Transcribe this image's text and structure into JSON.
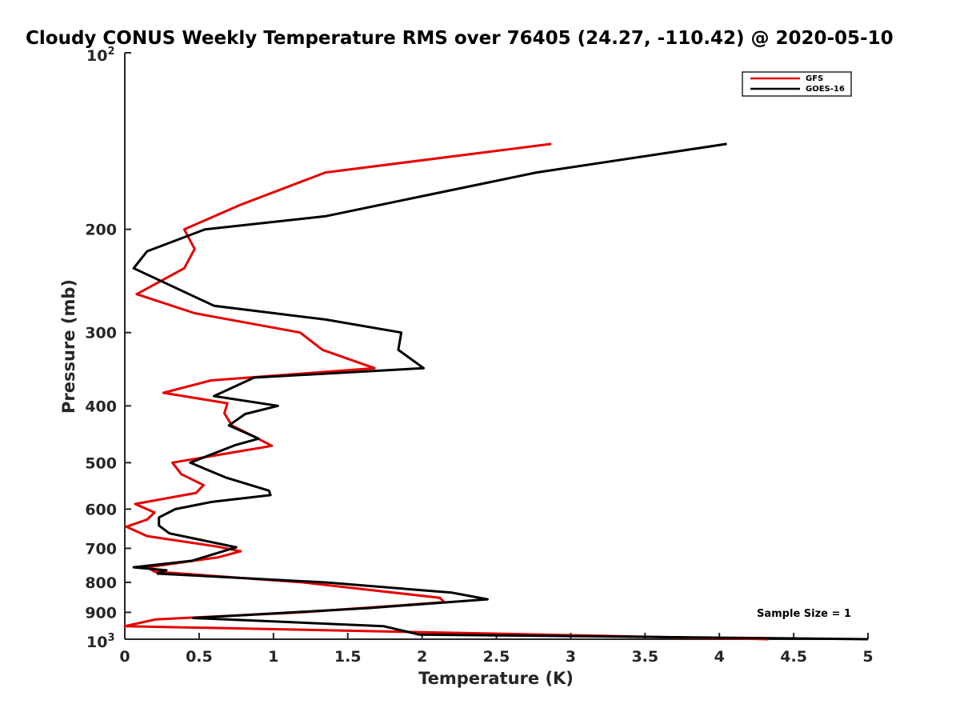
{
  "chart_data": {
    "type": "line",
    "title": "Cloudy CONUS Weekly Temperature RMS over 76405 (24.27, -110.42) @ 2020-05-10",
    "xlabel": "Temperature (K)",
    "ylabel": "Pressure (mb)",
    "xlim": [
      0,
      5
    ],
    "ylim": [
      100,
      1000
    ],
    "yscale": "log",
    "y_reversed": true,
    "grid": false,
    "legend_location": "top-right",
    "x_ticks": [
      0,
      0.5,
      1,
      1.5,
      2,
      2.5,
      3,
      3.5,
      4,
      4.5,
      5
    ],
    "x_tick_labels": [
      "0",
      "0.5",
      "1",
      "1.5",
      "2",
      "2.5",
      "3",
      "3.5",
      "4",
      "4.5",
      "5"
    ],
    "y_ticks": [
      200,
      300,
      400,
      500,
      600,
      700,
      800,
      900
    ],
    "y_tick_labels": [
      "200",
      "300",
      "400",
      "500",
      "600",
      "700",
      "800",
      "900"
    ],
    "y_min_label_base": "10",
    "y_min_label_exp": "2",
    "y_max_label_base": "10",
    "y_max_label_exp": "3",
    "annotation": "Sample Size = 1",
    "series": [
      {
        "name": "GFS",
        "color": "#e60000",
        "points": [
          [
            2.87,
            143
          ],
          [
            1.35,
            160
          ],
          [
            0.77,
            182
          ],
          [
            0.4,
            200
          ],
          [
            0.47,
            216
          ],
          [
            0.4,
            233
          ],
          [
            0.08,
            258
          ],
          [
            0.47,
            278
          ],
          [
            1.18,
            300
          ],
          [
            1.33,
            321
          ],
          [
            1.68,
            345
          ],
          [
            0.58,
            362
          ],
          [
            0.26,
            380
          ],
          [
            0.69,
            396
          ],
          [
            0.67,
            412
          ],
          [
            0.72,
            432
          ],
          [
            0.86,
            450
          ],
          [
            0.99,
            468
          ],
          [
            0.32,
            500
          ],
          [
            0.38,
            523
          ],
          [
            0.53,
            546
          ],
          [
            0.48,
            563
          ],
          [
            0.07,
            588
          ],
          [
            0.2,
            608
          ],
          [
            0.15,
            625
          ],
          [
            0.01,
            643
          ],
          [
            0.15,
            667
          ],
          [
            0.62,
            695
          ],
          [
            0.78,
            708
          ],
          [
            0.63,
            725
          ],
          [
            0.15,
            754
          ],
          [
            0.2,
            767
          ],
          [
            1.2,
            800
          ],
          [
            2.12,
            850
          ],
          [
            2.15,
            865
          ],
          [
            1.18,
            900
          ],
          [
            0.21,
            925
          ],
          [
            0.0,
            950
          ],
          [
            4.33,
            1000
          ]
        ]
      },
      {
        "name": "GOES-16",
        "color": "#000000",
        "points": [
          [
            4.05,
            143
          ],
          [
            2.77,
            160
          ],
          [
            1.35,
            190
          ],
          [
            0.54,
            200
          ],
          [
            0.15,
            218
          ],
          [
            0.06,
            233
          ],
          [
            0.6,
            270
          ],
          [
            1.35,
            285
          ],
          [
            1.86,
            300
          ],
          [
            1.84,
            321
          ],
          [
            2.01,
            345
          ],
          [
            0.87,
            358
          ],
          [
            0.6,
            385
          ],
          [
            1.03,
            400
          ],
          [
            0.81,
            413
          ],
          [
            0.7,
            432
          ],
          [
            0.9,
            455
          ],
          [
            0.74,
            467
          ],
          [
            0.44,
            500
          ],
          [
            0.68,
            530
          ],
          [
            0.97,
            558
          ],
          [
            0.98,
            568
          ],
          [
            0.59,
            583
          ],
          [
            0.34,
            600
          ],
          [
            0.23,
            620
          ],
          [
            0.23,
            640
          ],
          [
            0.3,
            660
          ],
          [
            0.75,
            697
          ],
          [
            0.45,
            735
          ],
          [
            0.06,
            754
          ],
          [
            0.28,
            763
          ],
          [
            0.22,
            773
          ],
          [
            1.35,
            800
          ],
          [
            2.2,
            833
          ],
          [
            2.44,
            855
          ],
          [
            1.64,
            885
          ],
          [
            0.46,
            920
          ],
          [
            1.74,
            950
          ],
          [
            1.98,
            982
          ],
          [
            5.0,
            1000
          ]
        ]
      }
    ]
  }
}
